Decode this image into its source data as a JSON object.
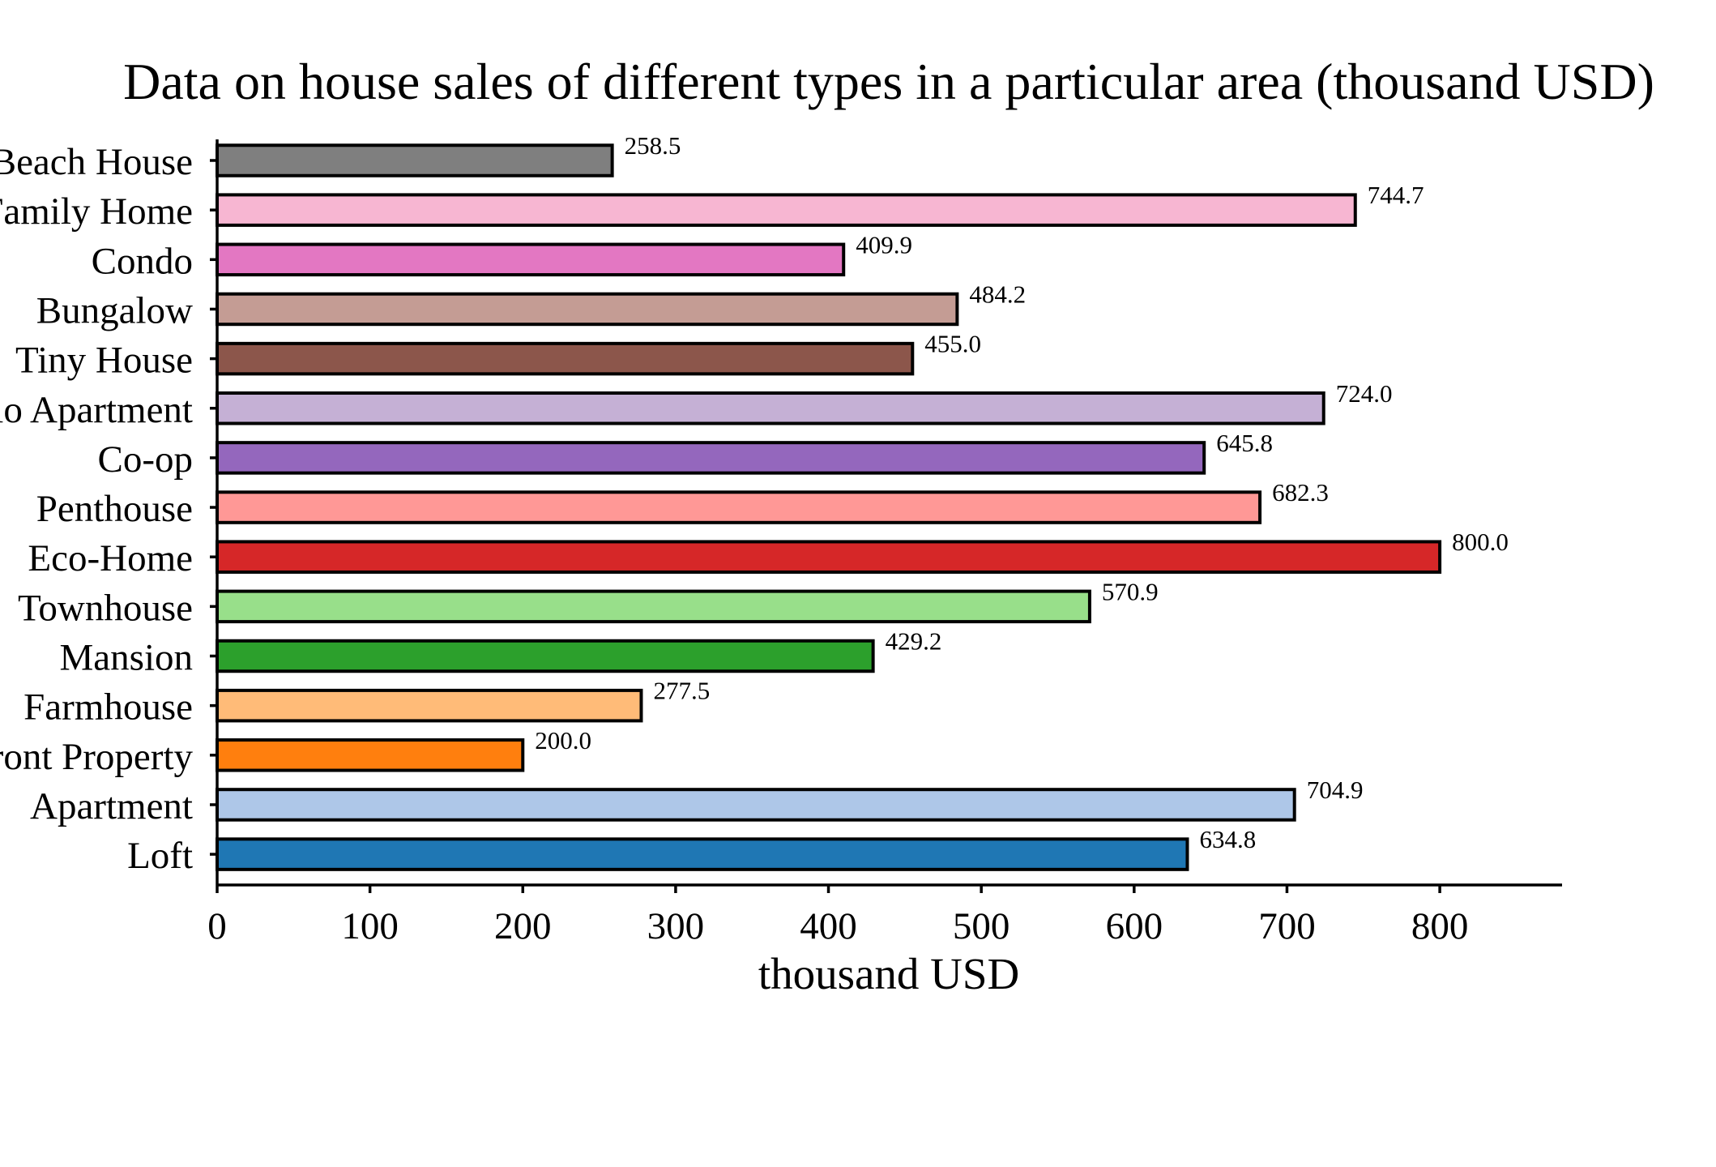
{
  "chart_data": {
    "type": "bar",
    "orientation": "horizontal",
    "title": "Data on house sales of different types in a particular area (thousand USD)",
    "xlabel": "thousand USD",
    "ylabel": "",
    "xlim": [
      0,
      880
    ],
    "xticks": [
      0,
      100,
      200,
      300,
      400,
      500,
      600,
      700,
      800
    ],
    "grid": false,
    "categories": [
      "Beach House",
      "Family Home",
      "Condo",
      "Bungalow",
      "Tiny House",
      "Studio Apartment",
      "Co-op",
      "Penthouse",
      "Eco-Home",
      "Townhouse",
      "Mansion",
      "Farmhouse",
      "Waterfront Property",
      "Apartment",
      "Loft"
    ],
    "values": [
      258.5,
      744.7,
      409.9,
      484.2,
      455.0,
      724.0,
      645.8,
      682.3,
      800.0,
      570.9,
      429.2,
      277.5,
      200.0,
      704.9,
      634.8
    ],
    "value_labels": [
      "258.5",
      "744.7",
      "409.9",
      "484.2",
      "455.0",
      "724.0",
      "645.8",
      "682.3",
      "800.0",
      "570.9",
      "429.2",
      "277.5",
      "200.0",
      "704.9",
      "634.8"
    ],
    "colors": [
      "#7f7f7f",
      "#f7b6d2",
      "#e377c2",
      "#c49c94",
      "#8c564b",
      "#c5b0d5",
      "#9467bd",
      "#ff9896",
      "#d62728",
      "#98df8a",
      "#2ca02c",
      "#ffbb78",
      "#ff7f0e",
      "#aec7e8",
      "#1f77b4"
    ]
  }
}
